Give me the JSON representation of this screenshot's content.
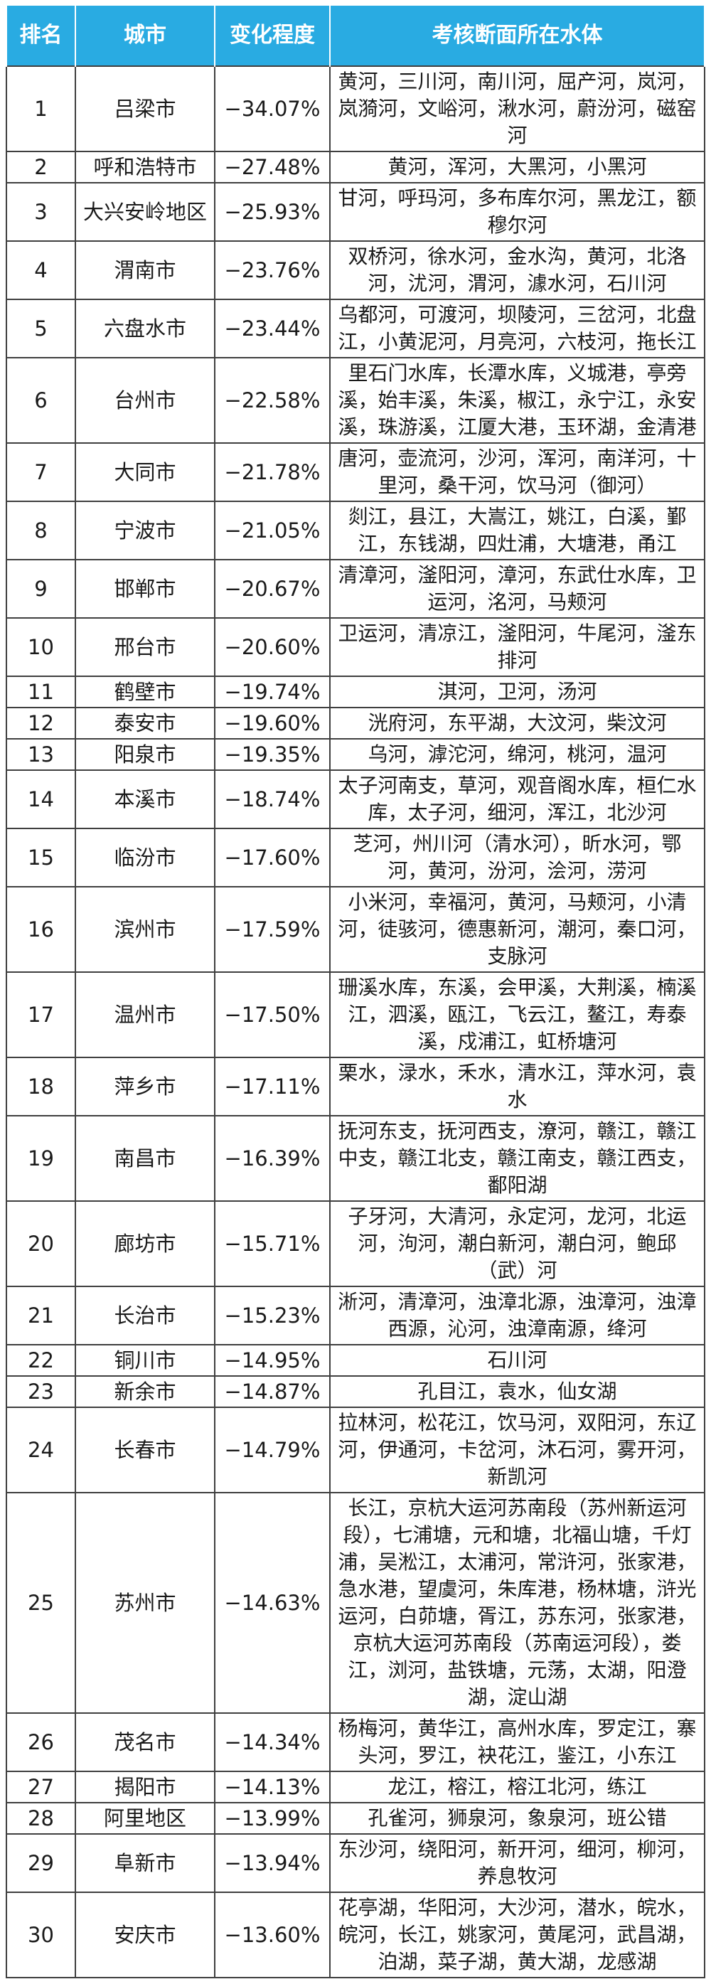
{
  "chart_data": {
    "type": "table",
    "title": "",
    "columns": [
      "排名",
      "城市",
      "变化程度",
      "考核断面所在水体"
    ],
    "rows": [
      {
        "rank": "1",
        "city": "吕梁市",
        "change": "−34.07%",
        "waters": "黄河，三川河，南川河，屈产河，岚河，岚漪河，文峪河，湫水河，蔚汾河，磁窑河"
      },
      {
        "rank": "2",
        "city": "呼和浩特市",
        "change": "−27.48%",
        "waters": "黄河，浑河，大黑河，小黑河"
      },
      {
        "rank": "3",
        "city": "大兴安岭地区",
        "change": "−25.93%",
        "waters": "甘河，呼玛河，多布库尔河，黑龙江，额穆尔河"
      },
      {
        "rank": "4",
        "city": "渭南市",
        "change": "−23.76%",
        "waters": "双桥河，徐水河，金水沟，黄河，北洛河，沋河，渭河，澽水河，石川河"
      },
      {
        "rank": "5",
        "city": "六盘水市",
        "change": "−23.44%",
        "waters": "乌都河，可渡河，坝陵河，三岔河，北盘江，小黄泥河，月亮河，六枝河，拖长江"
      },
      {
        "rank": "6",
        "city": "台州市",
        "change": "−22.58%",
        "waters": "里石门水库，长潭水库，义城港，亭旁溪，始丰溪，朱溪，椒江，永宁江，永安溪，珠游溪，江厦大港，玉环湖，金清港"
      },
      {
        "rank": "7",
        "city": "大同市",
        "change": "−21.78%",
        "waters": "唐河，壶流河，沙河，浑河，南洋河，十里河，桑干河，饮马河（御河）"
      },
      {
        "rank": "8",
        "city": "宁波市",
        "change": "−21.05%",
        "waters": "剡江，县江，大嵩江，姚江，白溪，鄞江，东钱湖，四灶浦，大塘港，甬江"
      },
      {
        "rank": "9",
        "city": "邯郸市",
        "change": "−20.67%",
        "waters": "清漳河，滏阳河，漳河，东武仕水库，卫运河，洺河，马颊河"
      },
      {
        "rank": "10",
        "city": "邢台市",
        "change": "−20.60%",
        "waters": "卫运河，清凉江，滏阳河，牛尾河，滏东排河"
      },
      {
        "rank": "11",
        "city": "鹤壁市",
        "change": "−19.74%",
        "waters": "淇河，卫河，汤河"
      },
      {
        "rank": "12",
        "city": "泰安市",
        "change": "−19.60%",
        "waters": "洸府河，东平湖，大汶河，柴汶河"
      },
      {
        "rank": "13",
        "city": "阳泉市",
        "change": "−19.35%",
        "waters": "乌河，滹沱河，绵河，桃河，温河"
      },
      {
        "rank": "14",
        "city": "本溪市",
        "change": "−18.74%",
        "waters": "太子河南支，草河，观音阁水库，桓仁水库，太子河，细河，浑江，北沙河"
      },
      {
        "rank": "15",
        "city": "临汾市",
        "change": "−17.60%",
        "waters": "芝河，州川河（清水河），昕水河，鄂河，黄河，汾河，浍河，涝河"
      },
      {
        "rank": "16",
        "city": "滨州市",
        "change": "−17.59%",
        "waters": "小米河，幸福河，黄河，马颊河，小清河，徒骇河，德惠新河，潮河，秦口河，支脉河"
      },
      {
        "rank": "17",
        "city": "温州市",
        "change": "−17.50%",
        "waters": "珊溪水库，东溪，会甲溪，大荆溪，楠溪江，泗溪，瓯江，飞云江，鳌江，寿泰溪，戍浦江，虹桥塘河"
      },
      {
        "rank": "18",
        "city": "萍乡市",
        "change": "−17.11%",
        "waters": "栗水，渌水，禾水，清水江，萍水河，袁水"
      },
      {
        "rank": "19",
        "city": "南昌市",
        "change": "−16.39%",
        "waters": "抚河东支，抚河西支，潦河，赣江，赣江中支，赣江北支，赣江南支，赣江西支，鄱阳湖"
      },
      {
        "rank": "20",
        "city": "廊坊市",
        "change": "−15.71%",
        "waters": "子牙河，大清河，永定河，龙河，北运河，泃河，潮白新河，潮白河，鲍邱（武）河"
      },
      {
        "rank": "21",
        "city": "长治市",
        "change": "−15.23%",
        "waters": "淅河，清漳河，浊漳北源，浊漳河，浊漳西源，沁河，浊漳南源，绛河"
      },
      {
        "rank": "22",
        "city": "铜川市",
        "change": "−14.95%",
        "waters": "石川河"
      },
      {
        "rank": "23",
        "city": "新余市",
        "change": "−14.87%",
        "waters": "孔目江，袁水，仙女湖"
      },
      {
        "rank": "24",
        "city": "长春市",
        "change": "−14.79%",
        "waters": "拉林河，松花江，饮马河，双阳河，东辽河，伊通河，卡岔河，沐石河，雾开河，新凯河"
      },
      {
        "rank": "25",
        "city": "苏州市",
        "change": "−14.63%",
        "waters": "长江，京杭大运河苏南段（苏州新运河段），七浦塘，元和塘，北福山塘，千灯浦，吴淞江，太浦河，常浒河，张家港，急水港，望虞河，朱库港，杨林塘，浒光运河，白茆塘，胥江，苏东河，张家港，京杭大运河苏南段（苏南运河段），娄江，浏河，盐铁塘，元荡，太湖，阳澄湖，淀山湖"
      },
      {
        "rank": "26",
        "city": "茂名市",
        "change": "−14.34%",
        "waters": "杨梅河，黄华江，高州水库，罗定江，寨头河，罗江，袂花江，鉴江，小东江"
      },
      {
        "rank": "27",
        "city": "揭阳市",
        "change": "−14.13%",
        "waters": "龙江，榕江，榕江北河，练江"
      },
      {
        "rank": "28",
        "city": "阿里地区",
        "change": "−13.99%",
        "waters": "孔雀河，狮泉河，象泉河，班公错"
      },
      {
        "rank": "29",
        "city": "阜新市",
        "change": "−13.94%",
        "waters": "东沙河，绕阳河，新开河，细河，柳河，养息牧河"
      },
      {
        "rank": "30",
        "city": "安庆市",
        "change": "−13.60%",
        "waters": "花亭湖，华阳河，大沙河，潜水，皖水，皖河，长江，姚家河，黄尾河，武昌湖，泊湖，菜子湖，黄大湖，龙感湖"
      }
    ],
    "legend_position": "none",
    "grid": true
  },
  "colors": {
    "header_bg": "#29ABE2",
    "header_text": "#FFFFFF",
    "border": "#3F3F3F",
    "body_text": "#1A1A1A"
  }
}
